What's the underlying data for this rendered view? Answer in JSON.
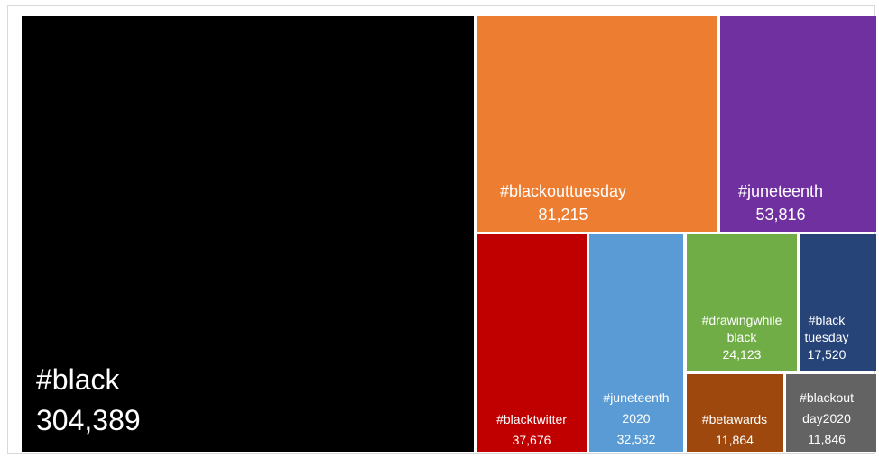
{
  "chart_data": {
    "type": "treemap",
    "items": [
      {
        "lines": [
          "#black",
          "304,389"
        ],
        "value": 304389,
        "color": "#000000"
      },
      {
        "lines": [
          "#blackouttuesday",
          "81,215"
        ],
        "value": 81215,
        "color": "#ED7D31"
      },
      {
        "lines": [
          "#juneteenth",
          "53,816"
        ],
        "value": 53816,
        "color": "#7030A0"
      },
      {
        "lines": [
          "#blacktwitter",
          "37,676"
        ],
        "value": 37676,
        "color": "#C00000"
      },
      {
        "lines": [
          "#juneteenth",
          "2020",
          "32,582"
        ],
        "value": 32582,
        "color": "#5B9BD5"
      },
      {
        "lines": [
          "#drawingwhile",
          "black",
          "24,123"
        ],
        "value": 24123,
        "color": "#70AD47"
      },
      {
        "lines": [
          "#black",
          "tuesday",
          "17,520"
        ],
        "value": 17520,
        "color": "#264478"
      },
      {
        "lines": [
          "#betawards",
          "11,864"
        ],
        "value": 11864,
        "color": "#9E480E"
      },
      {
        "lines": [
          "#blackout",
          "day2020",
          "11,846"
        ],
        "value": 11846,
        "color": "#636363"
      }
    ]
  }
}
